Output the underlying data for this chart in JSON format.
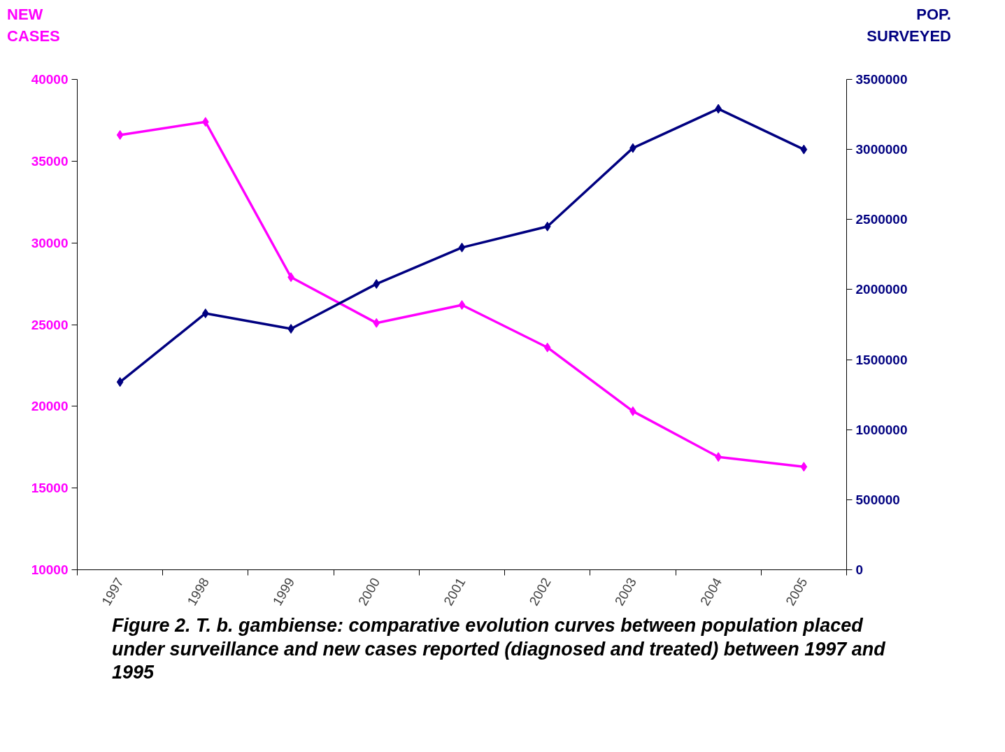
{
  "chart_data": {
    "type": "line",
    "categories": [
      "1997",
      "1998",
      "1999",
      "2000",
      "2001",
      "2002",
      "2003",
      "2004",
      "2005"
    ],
    "ylabel": "NEW CASES",
    "y2label": "POP. SURVEYED",
    "series": [
      {
        "color": "#ff00ff",
        "values": [
          36600,
          37400,
          27900,
          25100,
          26200,
          23600,
          19700,
          16900,
          16300
        ]
      },
      {
        "color": "#000080",
        "axis": "y2",
        "values": [
          1340000,
          1830000,
          1720000,
          2040000,
          2300000,
          2450000,
          3010000,
          3290000,
          3000000
        ]
      }
    ],
    "ylim": [
      10000,
      40000
    ],
    "yticks": [
      10000,
      15000,
      20000,
      25000,
      30000,
      35000,
      40000
    ],
    "y2lim": [
      0,
      3500000
    ],
    "y2ticks": [
      0,
      500000,
      1000000,
      1500000,
      2000000,
      2500000,
      3000000,
      3500000
    ],
    "annotations": [
      "Figure 2.   T. b. gambiense: comparative evolution curves between population placed under surveillance and new cases reported (diagnosed and treated) between 1997 and 1995"
    ],
    "grid": false,
    "marker": "diamond",
    "line_style": "solid"
  }
}
